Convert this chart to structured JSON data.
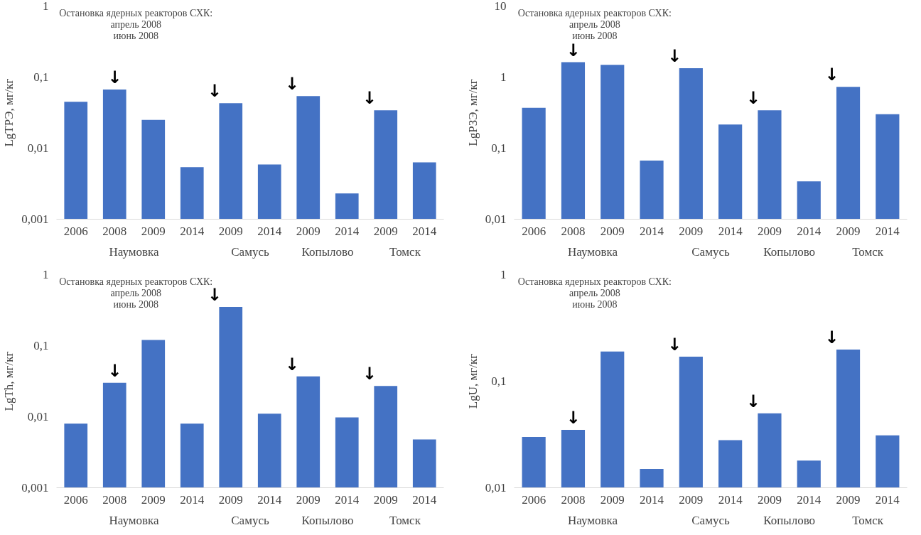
{
  "chart_data": [
    {
      "type": "bar",
      "ylabel": "LgТРЭ, мг/кг",
      "log": true,
      "color": "#4472c4",
      "categories": [
        "2006",
        "2008",
        "2009",
        "2014",
        "2009",
        "2014",
        "2009",
        "2014",
        "2009",
        "2014"
      ],
      "values": [
        0.045,
        0.067,
        0.025,
        0.0054,
        0.043,
        0.0059,
        0.054,
        0.0023,
        0.034,
        0.0063
      ],
      "ylim": [
        0.001,
        1
      ],
      "yticks": [
        {
          "value": 0.001,
          "label": "0,001"
        },
        {
          "value": 0.01,
          "label": "0,01"
        },
        {
          "value": 0.1,
          "label": "0,1"
        },
        1
      ],
      "annotations": [
        "Остановка ядерных реакторов СХК:\nапрель 2008\nиюнь 2008",
        "Наумовка",
        "Самусь",
        "Копылово",
        "Томск",
        {
          "text": "↓",
          "x": "2008",
          "y": 0.067
        },
        "↓",
        "↓",
        "↓"
      ]
    },
    {
      "type": "bar",
      "ylabel": "LgРЗЭ, мг/кг",
      "log": true,
      "color": "#4472c4",
      "categories": [
        "2006",
        "2008",
        "2009",
        "2014",
        "2009",
        "2014",
        "2009",
        "2014",
        "2009",
        "2014"
      ],
      "values": [
        0.37,
        1.62,
        1.49,
        0.067,
        1.33,
        0.215,
        0.34,
        0.034,
        0.73,
        0.3
      ],
      "ylim": [
        0.01,
        10
      ],
      "yticks": [
        {
          "value": 0.01,
          "label": "0,01"
        },
        {
          "value": 0.1,
          "label": "0,1"
        },
        1,
        10
      ],
      "annotations": [
        "Остановка ядерных реакторов СХК:\nапрель 2008\nиюнь 2008",
        "Наумовка",
        "Самусь",
        "Копылово",
        "Томск",
        {
          "text": "↓",
          "x": "2008",
          "y": 1.62
        },
        "↓",
        "↓",
        "↓"
      ]
    },
    {
      "type": "bar",
      "ylabel": "LgTh, мг/кг",
      "log": true,
      "color": "#4472c4",
      "categories": [
        "2006",
        "2008",
        "2009",
        "2014",
        "2009",
        "2014",
        "2009",
        "2014",
        "2009",
        "2014"
      ],
      "values": [
        0.008,
        0.03,
        0.12,
        0.008,
        0.35,
        0.011,
        0.037,
        0.0098,
        0.027,
        0.0048
      ],
      "ylim": [
        0.001,
        1
      ],
      "yticks": [
        {
          "value": 0.001,
          "label": "0,001"
        },
        {
          "value": 0.01,
          "label": "0,01"
        },
        {
          "value": 0.1,
          "label": "0,1"
        },
        1
      ],
      "annotations": [
        "Остановка ядерных реакторов СХК:\nапрель 2008\nиюнь 2008",
        "Наумовка",
        "Самусь",
        "Копылово",
        "Томск",
        {
          "text": "↓",
          "x": "2008",
          "y": 0.03
        },
        "↓",
        "↓",
        "↓"
      ]
    },
    {
      "type": "bar",
      "ylabel": "LgU, мг/кг",
      "log": true,
      "color": "#4472c4",
      "categories": [
        "2006",
        "2008",
        "2009",
        "2014",
        "2009",
        "2014",
        "2009",
        "2014",
        "2009",
        "2014"
      ],
      "values": [
        0.03,
        0.035,
        0.19,
        0.015,
        0.17,
        0.028,
        0.05,
        0.018,
        0.198,
        0.031
      ],
      "ylim": [
        0.01,
        1
      ],
      "yticks": [
        {
          "value": 0.01,
          "label": "0,01"
        },
        {
          "value": 0.1,
          "label": "0,1"
        },
        1
      ],
      "annotations": [
        "Остановка ядерных реакторов СХК:\nапрель 2008\nиюнь 2008",
        "Наумовка",
        "Самусь",
        "Копылово",
        "Томск",
        {
          "text": "↓",
          "x": "2008",
          "y": 0.035
        },
        "↓",
        "↓",
        "↓"
      ]
    }
  ]
}
